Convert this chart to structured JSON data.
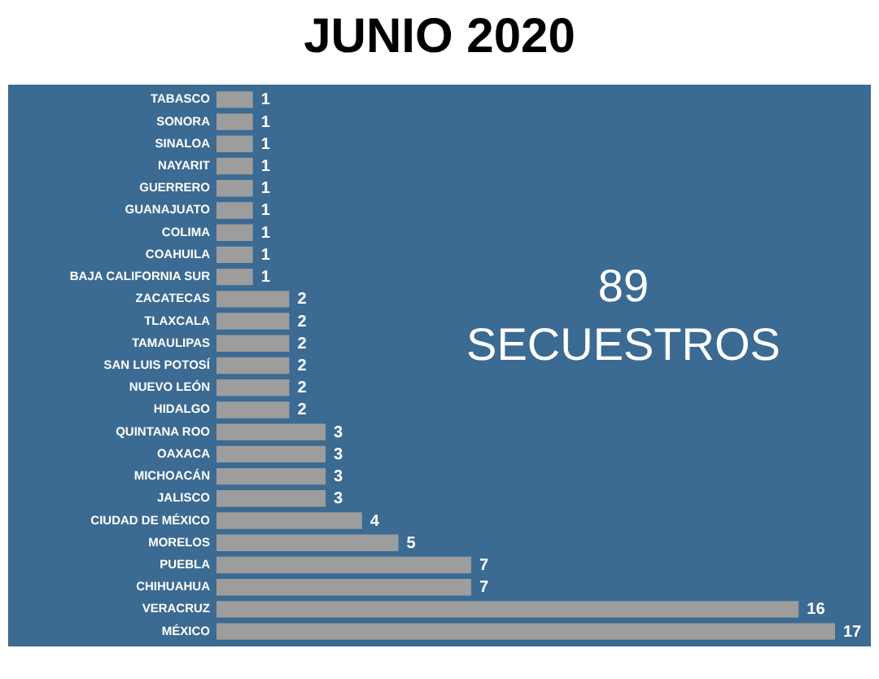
{
  "chart_data": {
    "type": "bar",
    "orientation": "horizontal",
    "title": "JUNIO 2020",
    "categories": [
      "TABASCO",
      "SONORA",
      "SINALOA",
      "NAYARIT",
      "GUERRERO",
      "GUANAJUATO",
      "COLIMA",
      "COAHUILA",
      "BAJA CALIFORNIA SUR",
      "ZACATECAS",
      "TLAXCALA",
      "TAMAULIPAS",
      "SAN LUIS POTOSÍ",
      "NUEVO LEÓN",
      "HIDALGO",
      "QUINTANA ROO",
      "OAXACA",
      "MICHOACÁN",
      "JALISCO",
      "CIUDAD DE MÉXICO",
      "MORELOS",
      "PUEBLA",
      "CHIHUAHUA",
      "VERACRUZ",
      "MÉXICO"
    ],
    "values": [
      1,
      1,
      1,
      1,
      1,
      1,
      1,
      1,
      1,
      2,
      2,
      2,
      2,
      2,
      2,
      3,
      3,
      3,
      3,
      4,
      5,
      7,
      7,
      16,
      17
    ],
    "color": "#9d9d9d",
    "data_labels": true,
    "annotations": [
      "89",
      "SECUESTROS"
    ]
  }
}
